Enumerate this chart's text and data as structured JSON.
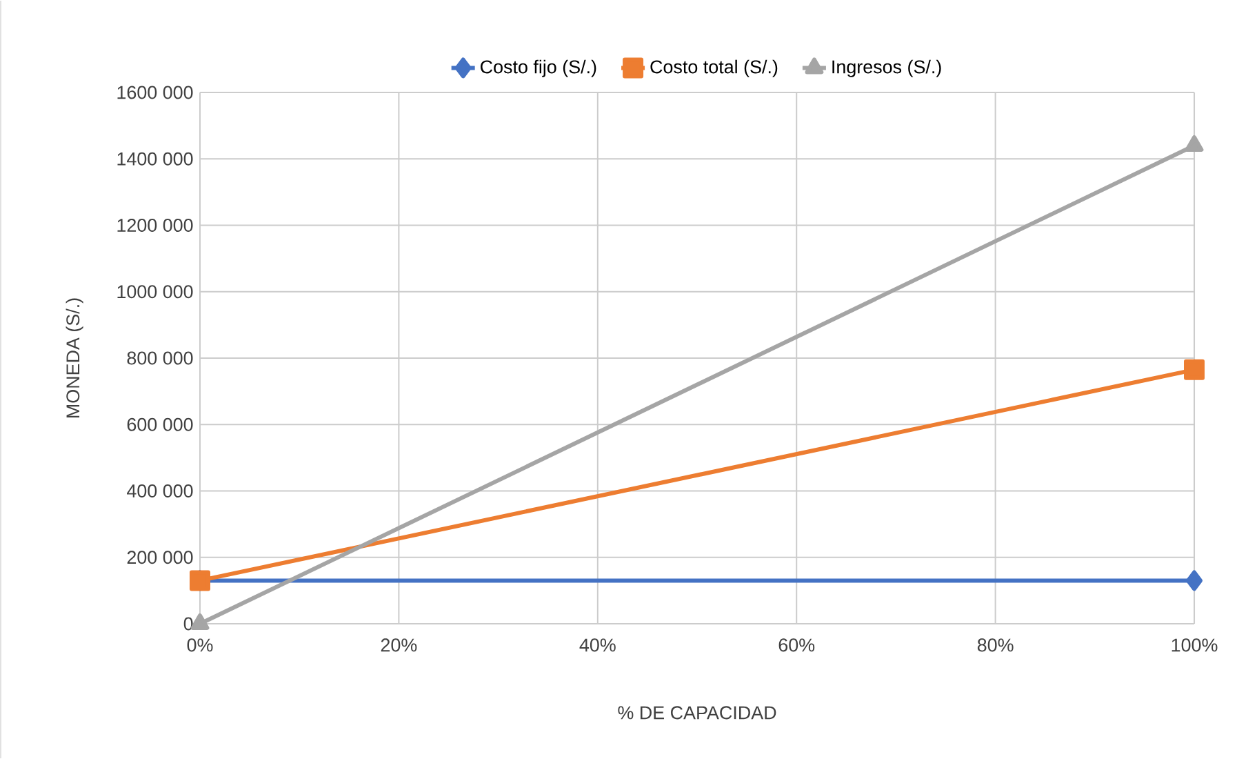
{
  "chart_data": {
    "type": "line",
    "xlabel": "% DE CAPACIDAD",
    "ylabel": "MONEDA (S/.)",
    "x": [
      0,
      100
    ],
    "series": [
      {
        "name": "Costo fijo (S/.)",
        "color": "#4472c4",
        "marker": "diamond",
        "values": [
          130000,
          130000
        ]
      },
      {
        "name": "Costo total (S/.)",
        "color": "#ed7d31",
        "marker": "square",
        "values": [
          130000,
          765000
        ]
      },
      {
        "name": "Ingresos (S/.)",
        "color": "#a5a5a5",
        "marker": "triangle",
        "values": [
          0,
          1440000
        ]
      }
    ],
    "xlim": [
      0,
      100
    ],
    "xticks": [
      {
        "value": 0,
        "label": "0%"
      },
      {
        "value": 20,
        "label": "20%"
      },
      {
        "value": 40,
        "label": "40%"
      },
      {
        "value": 60,
        "label": "60%"
      },
      {
        "value": 80,
        "label": "80%"
      },
      {
        "value": 100,
        "label": "100%"
      }
    ],
    "ylim": [
      0,
      1600000
    ],
    "yticks": [
      0,
      {
        "value": 200000,
        "label": "200 000"
      },
      {
        "value": 400000,
        "label": "400 000"
      },
      {
        "value": 600000,
        "label": "600 000"
      },
      {
        "value": 800000,
        "label": "800 000"
      },
      {
        "value": 1000000,
        "label": "1000 000"
      },
      {
        "value": 1200000,
        "label": "1200 000"
      },
      {
        "value": 1400000,
        "label": "1400 000"
      },
      {
        "value": 1600000,
        "label": "1600 000"
      }
    ],
    "grid": true,
    "legend": "top",
    "line_style": "solid"
  }
}
